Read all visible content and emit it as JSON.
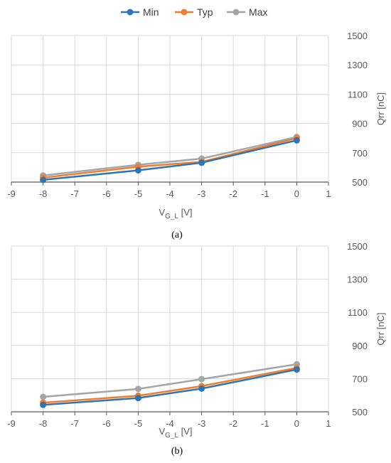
{
  "legend": {
    "position": "top-center",
    "items": [
      {
        "name": "Min",
        "color": "#2e75b6"
      },
      {
        "name": "Typ",
        "color": "#ed7d31"
      },
      {
        "name": "Max",
        "color": "#a5a5a5"
      }
    ]
  },
  "chart_data": [
    {
      "type": "line",
      "panel_label": "(a)",
      "xlabel_main": "V",
      "xlabel_sub": "G_L",
      "xlabel_unit": " [V]",
      "ylabel": "Qrr [nC]",
      "xlim": [
        -9,
        1
      ],
      "ylim": [
        500,
        1500
      ],
      "xticks": [
        -9,
        -8,
        -7,
        -6,
        -5,
        -4,
        -3,
        -2,
        -1,
        0,
        1
      ],
      "yticks": [
        500,
        700,
        900,
        1100,
        1300,
        1500
      ],
      "y_axis_side": "right",
      "grid": true,
      "x": [
        -8,
        -5,
        -3,
        0
      ],
      "series": [
        {
          "name": "Min",
          "color": "#2e75b6",
          "values": [
            515,
            580,
            632,
            785
          ]
        },
        {
          "name": "Typ",
          "color": "#ed7d31",
          "values": [
            530,
            605,
            638,
            800
          ]
        },
        {
          "name": "Max",
          "color": "#a5a5a5",
          "values": [
            545,
            618,
            660,
            808
          ]
        }
      ]
    },
    {
      "type": "line",
      "panel_label": "(b)",
      "xlabel_main": "V",
      "xlabel_sub": "G_L",
      "xlabel_unit": " [V]",
      "ylabel": "Qrr [nC]",
      "xlim": [
        -9,
        1
      ],
      "ylim": [
        500,
        1500
      ],
      "xticks": [
        -9,
        -8,
        -7,
        -6,
        -5,
        -4,
        -3,
        -2,
        -1,
        0,
        1
      ],
      "yticks": [
        500,
        700,
        900,
        1100,
        1300,
        1500
      ],
      "y_axis_side": "right",
      "grid": true,
      "x": [
        -8,
        -5,
        -3,
        0
      ],
      "series": [
        {
          "name": "Min",
          "color": "#2e75b6",
          "values": [
            542,
            583,
            640,
            755
          ]
        },
        {
          "name": "Typ",
          "color": "#ed7d31",
          "values": [
            555,
            597,
            655,
            765
          ]
        },
        {
          "name": "Max",
          "color": "#a5a5a5",
          "values": [
            590,
            638,
            697,
            787
          ]
        }
      ]
    }
  ]
}
